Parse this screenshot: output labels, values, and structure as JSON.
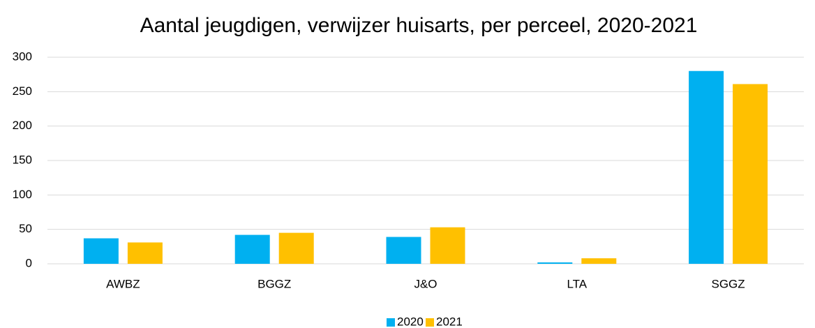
{
  "chart_data": {
    "type": "bar",
    "title": "Aantal jeugdigen, verwijzer huisarts, per perceel, 2020-2021",
    "categories": [
      "AWBZ",
      "BGGZ",
      "J&O",
      "LTA",
      "SGGZ"
    ],
    "series": [
      {
        "name": "2020",
        "color": "#00b0f0",
        "values": [
          37,
          42,
          39,
          2,
          280
        ]
      },
      {
        "name": "2021",
        "color": "#ffc000",
        "values": [
          31,
          45,
          53,
          8,
          261
        ]
      }
    ],
    "ylim": [
      0,
      300
    ],
    "yticks": [
      0,
      50,
      100,
      150,
      200,
      250,
      300
    ],
    "grid": true,
    "legend": "bottom"
  }
}
